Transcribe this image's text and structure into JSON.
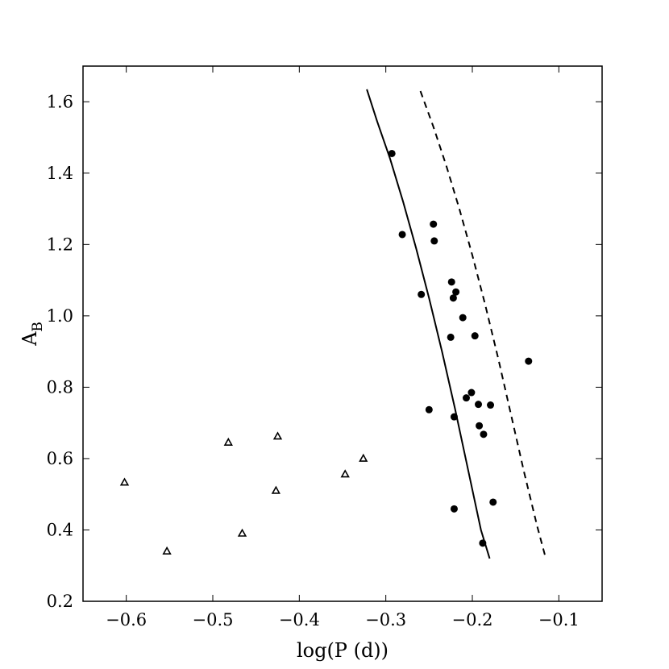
{
  "chart_data": {
    "type": "scatter",
    "xlabel": "log(P (d))",
    "ylabel": "A",
    "ylabel_subscript": "B",
    "xlim": [
      -0.65,
      -0.05
    ],
    "ylim": [
      0.2,
      1.7
    ],
    "xticks": [
      -0.6,
      -0.5,
      -0.4,
      -0.3,
      -0.2,
      -0.1
    ],
    "xtick_labels": [
      "−0.6",
      "−0.5",
      "−0.4",
      "−0.3",
      "−0.2",
      "−0.1"
    ],
    "yticks": [
      0.2,
      0.4,
      0.6,
      0.8,
      1.0,
      1.2,
      1.4,
      1.6
    ],
    "ytick_labels": [
      "0.2",
      "0.4",
      "0.6",
      "0.8",
      "1.0",
      "1.2",
      "1.4",
      "1.6"
    ],
    "grid": false,
    "series": [
      {
        "marker": "filled-circle",
        "color": "#000000",
        "points": [
          [
            -0.293,
            1.455
          ],
          [
            -0.281,
            1.228
          ],
          [
            -0.245,
            1.257
          ],
          [
            -0.244,
            1.21
          ],
          [
            -0.259,
            1.06
          ],
          [
            -0.224,
            1.095
          ],
          [
            -0.219,
            1.067
          ],
          [
            -0.222,
            1.05
          ],
          [
            -0.211,
            0.995
          ],
          [
            -0.225,
            0.94
          ],
          [
            -0.197,
            0.944
          ],
          [
            -0.135,
            0.873
          ],
          [
            -0.201,
            0.785
          ],
          [
            -0.207,
            0.77
          ],
          [
            -0.193,
            0.752
          ],
          [
            -0.179,
            0.75
          ],
          [
            -0.25,
            0.737
          ],
          [
            -0.221,
            0.717
          ],
          [
            -0.192,
            0.692
          ],
          [
            -0.187,
            0.668
          ],
          [
            -0.176,
            0.478
          ],
          [
            -0.221,
            0.459
          ],
          [
            -0.188,
            0.363
          ]
        ]
      },
      {
        "marker": "open-triangle",
        "color": "#000000",
        "points": [
          [
            -0.602,
            0.533
          ],
          [
            -0.553,
            0.34
          ],
          [
            -0.482,
            0.645
          ],
          [
            -0.466,
            0.39
          ],
          [
            -0.425,
            0.662
          ],
          [
            -0.427,
            0.51
          ],
          [
            -0.347,
            0.556
          ],
          [
            -0.326,
            0.6
          ]
        ]
      },
      {
        "style": "solid-line",
        "color": "#000000",
        "points": [
          [
            -0.322,
            1.635
          ],
          [
            -0.31,
            1.545
          ],
          [
            -0.295,
            1.44
          ],
          [
            -0.28,
            1.32
          ],
          [
            -0.265,
            1.19
          ],
          [
            -0.25,
            1.05
          ],
          [
            -0.235,
            0.9
          ],
          [
            -0.22,
            0.74
          ],
          [
            -0.205,
            0.57
          ],
          [
            -0.19,
            0.4
          ],
          [
            -0.18,
            0.32
          ]
        ]
      },
      {
        "style": "dashed-line",
        "color": "#000000",
        "points": [
          [
            -0.26,
            1.63
          ],
          [
            -0.245,
            1.53
          ],
          [
            -0.23,
            1.42
          ],
          [
            -0.215,
            1.3
          ],
          [
            -0.2,
            1.17
          ],
          [
            -0.185,
            1.03
          ],
          [
            -0.17,
            0.88
          ],
          [
            -0.155,
            0.72
          ],
          [
            -0.14,
            0.56
          ],
          [
            -0.125,
            0.41
          ],
          [
            -0.115,
            0.32
          ]
        ]
      }
    ]
  }
}
